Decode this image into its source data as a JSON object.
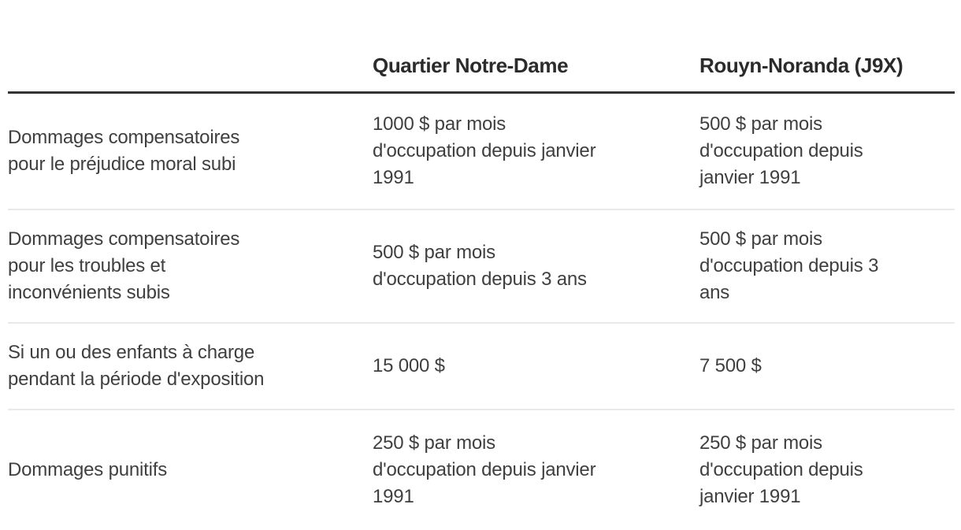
{
  "chart_data": {
    "type": "table",
    "title": "",
    "columns": [
      "",
      "Quartier Notre-Dame",
      "Rouyn-Noranda (J9X)"
    ],
    "rows": [
      [
        "Dommages compensatoires pour le préjudice moral subi",
        "1000 $ par mois d'occupation depuis janvier 1991",
        "500 $ par mois d'occupation depuis janvier 1991"
      ],
      [
        "Dommages compensatoires pour les troubles et inconvénients subis",
        "500 $ par mois d'occupation depuis 3 ans",
        "500 $ par mois d'occupation depuis 3 ans"
      ],
      [
        "Si un ou des enfants à charge pendant la période d'exposition",
        "15 000 $",
        "7 500 $"
      ],
      [
        "Dommages punitifs",
        "250 $ par mois d'occupation depuis janvier 1991",
        "250 $ par mois d'occupation depuis janvier 1991"
      ]
    ]
  },
  "table": {
    "columns": [
      {
        "label": ""
      },
      {
        "label": "Quartier Notre-Dame"
      },
      {
        "label": "Rouyn-Noranda (J9X)"
      }
    ],
    "rows": [
      {
        "label": "Dommages compensatoires\npour le préjudice moral subi",
        "values": [
          "1000 $ par mois\nd'occupation depuis janvier\n1991",
          "500 $ par mois\nd'occupation depuis\njanvier 1991"
        ]
      },
      {
        "label": "Dommages compensatoires\npour les troubles et\ninconvénients subis",
        "values": [
          "500 $ par mois\nd'occupation depuis 3 ans",
          "500 $ par mois\nd'occupation depuis 3\nans"
        ]
      },
      {
        "label": "Si un ou des enfants à charge\npendant la période d'exposition",
        "values": [
          "15 000 $",
          "7 500 $"
        ]
      },
      {
        "label": "Dommages punitifs",
        "values": [
          "250 $ par mois\nd'occupation depuis janvier\n1991",
          "250 $ par mois\nd'occupation depuis\njanvier 1991"
        ]
      }
    ]
  },
  "colors": {
    "background": "#ffffff",
    "header_text": "#2b2b2b",
    "body_text": "#3f3f3f",
    "header_rule": "#333333",
    "row_rule": "#e9e9e9"
  }
}
